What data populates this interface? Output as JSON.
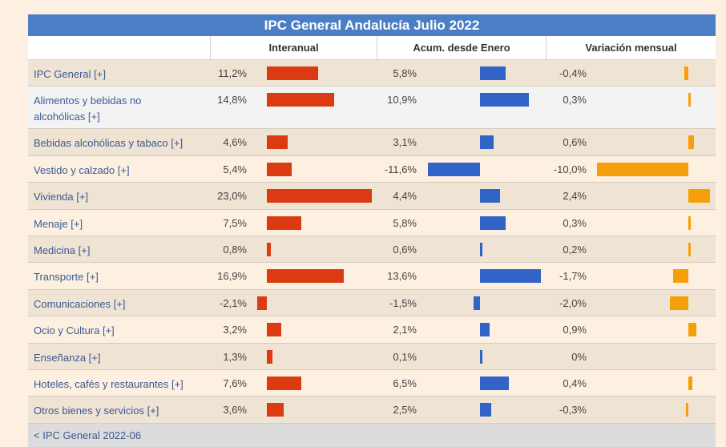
{
  "title": "IPC General Andalucía Julio 2022",
  "columns": [
    "Interanual",
    "Acum. desde Enero",
    "Variación mensual"
  ],
  "colors": {
    "interanual": "#dc3a12",
    "acumulado": "#3264c8",
    "mensual": "#f5a00a",
    "header": "#4a7fc5"
  },
  "rows": [
    {
      "label": "IPC General [+]",
      "interanual": "11,2%",
      "acum": "5,8%",
      "mensual": "-0,4%",
      "vi": 11.2,
      "va": 5.8,
      "vm": -0.4
    },
    {
      "label": "Alimentos y bebidas no alcohólicas [+]",
      "interanual": "14,8%",
      "acum": "10,9%",
      "mensual": "0,3%",
      "vi": 14.8,
      "va": 10.9,
      "vm": 0.3
    },
    {
      "label": "Bebidas alcohólicas y tabaco [+]",
      "interanual": "4,6%",
      "acum": "3,1%",
      "mensual": "0,6%",
      "vi": 4.6,
      "va": 3.1,
      "vm": 0.6
    },
    {
      "label": "Vestido y calzado [+]",
      "interanual": "5,4%",
      "acum": "-11,6%",
      "mensual": "-10,0%",
      "vi": 5.4,
      "va": -11.6,
      "vm": -10.0
    },
    {
      "label": "Vivienda [+]",
      "interanual": "23,0%",
      "acum": "4,4%",
      "mensual": "2,4%",
      "vi": 23.0,
      "va": 4.4,
      "vm": 2.4
    },
    {
      "label": "Menaje [+]",
      "interanual": "7,5%",
      "acum": "5,8%",
      "mensual": "0,3%",
      "vi": 7.5,
      "va": 5.8,
      "vm": 0.3
    },
    {
      "label": "Medicina [+]",
      "interanual": "0,8%",
      "acum": "0,6%",
      "mensual": "0,2%",
      "vi": 0.8,
      "va": 0.6,
      "vm": 0.2
    },
    {
      "label": "Transporte [+]",
      "interanual": "16,9%",
      "acum": "13,6%",
      "mensual": "-1,7%",
      "vi": 16.9,
      "va": 13.6,
      "vm": -1.7
    },
    {
      "label": "Comunicaciones [+]",
      "interanual": "-2,1%",
      "acum": "-1,5%",
      "mensual": "-2,0%",
      "vi": -2.1,
      "va": -1.5,
      "vm": -2.0
    },
    {
      "label": "Ocio y Cultura [+]",
      "interanual": "3,2%",
      "acum": "2,1%",
      "mensual": "0,9%",
      "vi": 3.2,
      "va": 2.1,
      "vm": 0.9
    },
    {
      "label": "Enseñanza [+]",
      "interanual": "1,3%",
      "acum": "0,1%",
      "mensual": "0%",
      "vi": 1.3,
      "va": 0.1,
      "vm": 0
    },
    {
      "label": "Hoteles, cafés y restaurantes [+]",
      "interanual": "7,6%",
      "acum": "6,5%",
      "mensual": "0,4%",
      "vi": 7.6,
      "va": 6.5,
      "vm": 0.4
    },
    {
      "label": "Otros bienes y servicios [+]",
      "interanual": "3,6%",
      "acum": "2,5%",
      "mensual": "-0,3%",
      "vi": 3.6,
      "va": 2.5,
      "vm": -0.3
    }
  ],
  "footer_link": "< IPC General 2022-06"
}
